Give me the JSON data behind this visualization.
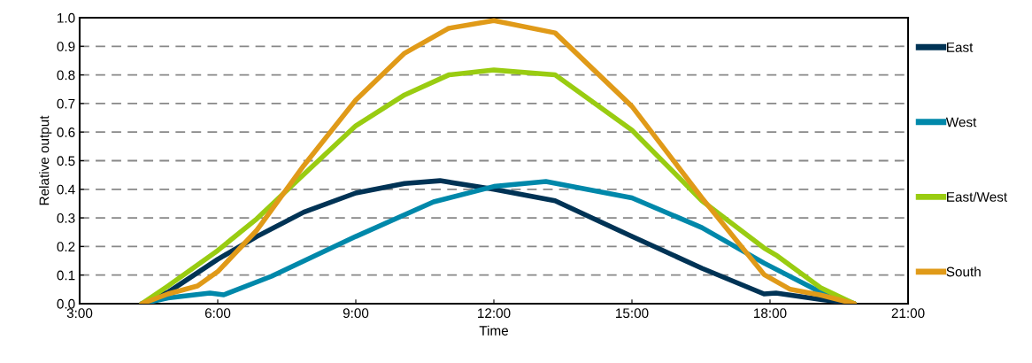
{
  "chart_data": {
    "type": "line",
    "xlabel": "Time",
    "ylabel": "Relative output",
    "xlim": [
      3,
      21
    ],
    "ylim": [
      0,
      1
    ],
    "xticks": [
      {
        "value": 3,
        "label": "3:00"
      },
      {
        "value": 6,
        "label": "6:00"
      },
      {
        "value": 9,
        "label": "9:00"
      },
      {
        "value": 12,
        "label": "12:00"
      },
      {
        "value": 15,
        "label": "15:00"
      },
      {
        "value": 18,
        "label": "18:00"
      },
      {
        "value": 21,
        "label": "21:00"
      }
    ],
    "yticks": [
      {
        "value": 0,
        "label": "0.0"
      },
      {
        "value": 0.1,
        "label": "0.1"
      },
      {
        "value": 0.2,
        "label": "0.2"
      },
      {
        "value": 0.3,
        "label": "0.3"
      },
      {
        "value": 0.4,
        "label": "0.4"
      },
      {
        "value": 0.5,
        "label": "0.5"
      },
      {
        "value": 0.6,
        "label": "0.6"
      },
      {
        "value": 0.7,
        "label": "0.7"
      },
      {
        "value": 0.8,
        "label": "0.8"
      },
      {
        "value": 0.9,
        "label": "0.9"
      },
      {
        "value": 1,
        "label": "1.0"
      }
    ],
    "grid": "y",
    "legend": "right",
    "marker": "none",
    "line_style": "solid",
    "series": [
      {
        "name": "East",
        "color": "#003355",
        "x": [
          4.35,
          4.92,
          6.0,
          6.85,
          7.87,
          9.0,
          10.06,
          10.83,
          12.0,
          13.33,
          15.0,
          16.52,
          17.87,
          18.13,
          19.1,
          19.83
        ],
        "values": [
          0,
          0.04,
          0.155,
          0.235,
          0.32,
          0.387,
          0.42,
          0.43,
          0.4,
          0.36,
          0.235,
          0.124,
          0.034,
          0.037,
          0.015,
          0
        ]
      },
      {
        "name": "West",
        "color": "#0088aa",
        "x": [
          4.35,
          4.92,
          5.83,
          6.13,
          7.17,
          9.0,
          10.69,
          12.0,
          13.13,
          15.0,
          16.52,
          17.87,
          19.1,
          19.83
        ],
        "values": [
          0,
          0.02,
          0.037,
          0.031,
          0.096,
          0.235,
          0.356,
          0.41,
          0.427,
          0.37,
          0.266,
          0.142,
          0.04,
          0
        ]
      },
      {
        "name": "East/West",
        "color": "#99cc11",
        "x": [
          4.35,
          4.92,
          6.0,
          6.85,
          7.87,
          9.0,
          10.06,
          11.02,
          12.0,
          13.33,
          15.0,
          16.52,
          17.87,
          18.13,
          19.1,
          19.83
        ],
        "values": [
          0,
          0.062,
          0.186,
          0.297,
          0.452,
          0.622,
          0.73,
          0.8,
          0.817,
          0.8,
          0.607,
          0.36,
          0.195,
          0.17,
          0.056,
          0
        ]
      },
      {
        "name": "South",
        "color": "#e09a18",
        "x": [
          4.35,
          4.92,
          5.56,
          6.0,
          6.85,
          7.87,
          9.0,
          10.06,
          11.02,
          12.0,
          13.33,
          15.0,
          16.52,
          17.87,
          18.44,
          19.1,
          19.83
        ],
        "values": [
          0,
          0.034,
          0.062,
          0.112,
          0.257,
          0.483,
          0.712,
          0.876,
          0.963,
          0.99,
          0.947,
          0.69,
          0.37,
          0.102,
          0.05,
          0.03,
          0
        ]
      }
    ]
  }
}
